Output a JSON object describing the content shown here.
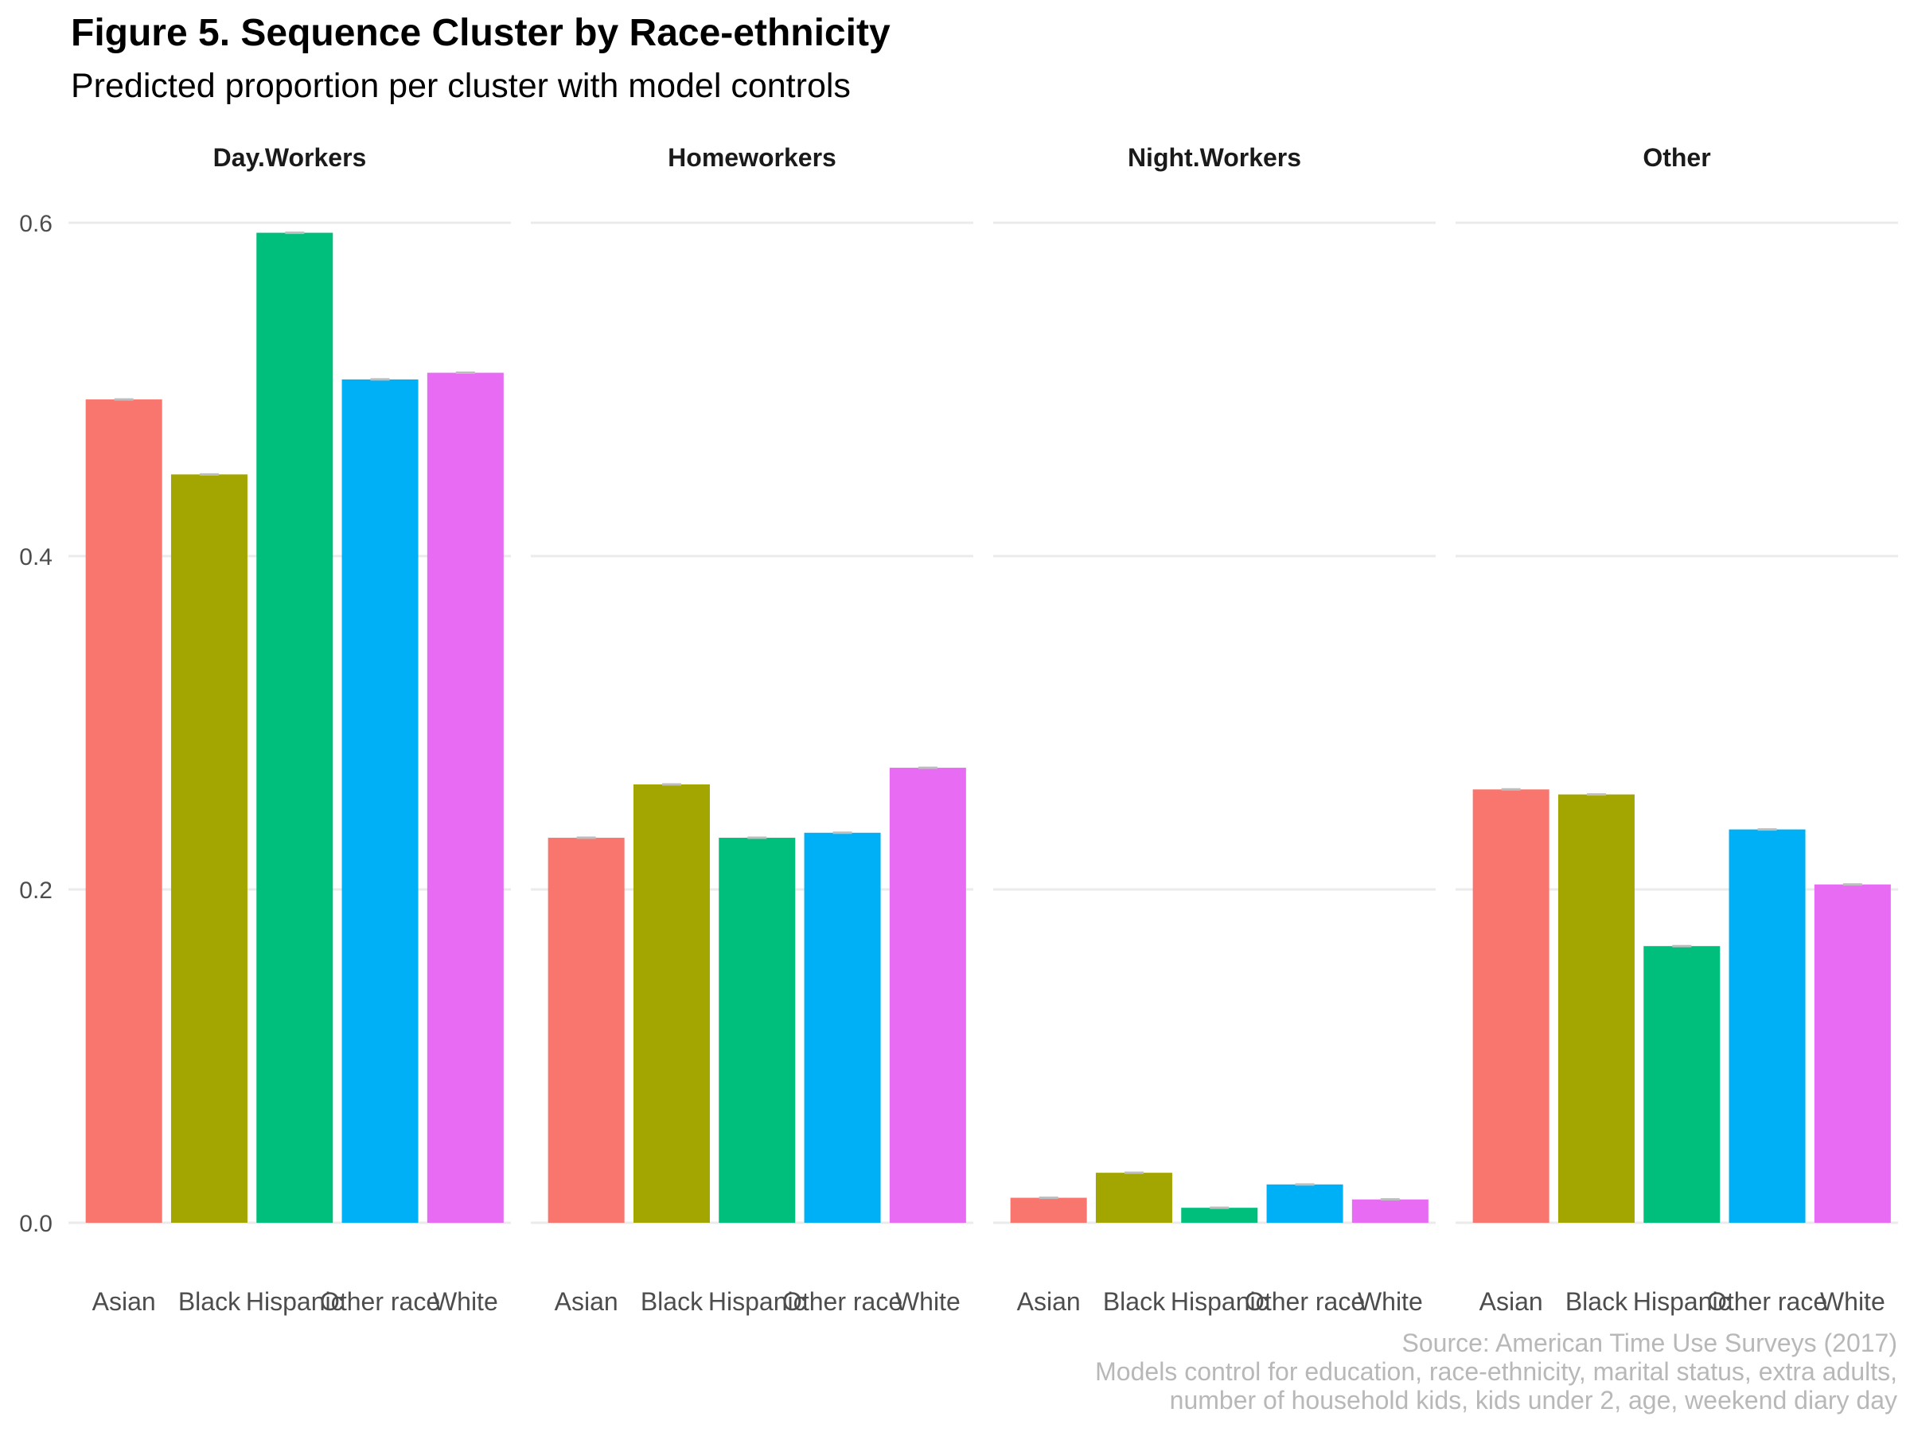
{
  "chart_data": {
    "type": "bar",
    "title": "Figure 5. Sequence Cluster by Race-ethnicity",
    "subtitle": "Predicted proportion per cluster with model controls",
    "xlabel": "",
    "ylabel": "",
    "ylim": [
      0,
      0.6
    ],
    "yticks": [
      "0.0",
      "0.2",
      "0.4",
      "0.6"
    ],
    "yticks_values": [
      0,
      0.2,
      0.4,
      0.6
    ],
    "grid": true,
    "categories": [
      "Asian",
      "Black",
      "Hispanic",
      "Other race",
      "White"
    ],
    "colors": [
      "#F8766D",
      "#A3A500",
      "#00BF7D",
      "#00B0F6",
      "#E76BF3"
    ],
    "error_color": "#bdbdbd",
    "panels": [
      {
        "name": "Day.Workers",
        "values": [
          0.494,
          0.449,
          0.594,
          0.506,
          0.51
        ]
      },
      {
        "name": "Homeworkers",
        "values": [
          0.231,
          0.263,
          0.231,
          0.234,
          0.273
        ]
      },
      {
        "name": "Night.Workers",
        "values": [
          0.015,
          0.03,
          0.009,
          0.023,
          0.014
        ]
      },
      {
        "name": "Other",
        "values": [
          0.26,
          0.257,
          0.166,
          0.236,
          0.203
        ]
      }
    ]
  },
  "caption": {
    "line1": "Source: American Time Use Surveys (2017)",
    "line2": "Models control for education, race-ethnicity, marital status, extra adults,",
    "line3": "number of household kids, kids under 2, age, weekend diary day"
  }
}
